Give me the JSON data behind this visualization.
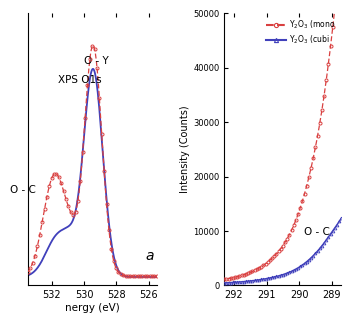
{
  "left_panel": {
    "annotation_OY": "O - Y",
    "annotation_OC": "O - C",
    "title": "XPS O1s",
    "label_a": "a",
    "mono_color": "#d94040",
    "cubic_color": "#4040bb",
    "xlim_high": 533.5,
    "xlim_low": 525.5,
    "xticks": [
      532,
      530,
      528,
      526
    ],
    "xlabel": "nergy (eV)"
  },
  "right_panel": {
    "ylabel": "Intensity (Counts)",
    "annotation_OC": "O - C",
    "legend_mono": "Y$_2$O$_3$ (mono",
    "legend_cubic": "Y$_2$O$_3$ (cubi",
    "mono_color": "#d94040",
    "cubic_color": "#4040bb",
    "xlim_high": 292.3,
    "xlim_low": 288.7,
    "xticks": [
      292,
      291,
      290,
      289
    ],
    "ylim": [
      0,
      50000
    ],
    "yticks": [
      0,
      10000,
      20000,
      30000,
      40000,
      50000
    ]
  },
  "bg_color": "#ffffff"
}
